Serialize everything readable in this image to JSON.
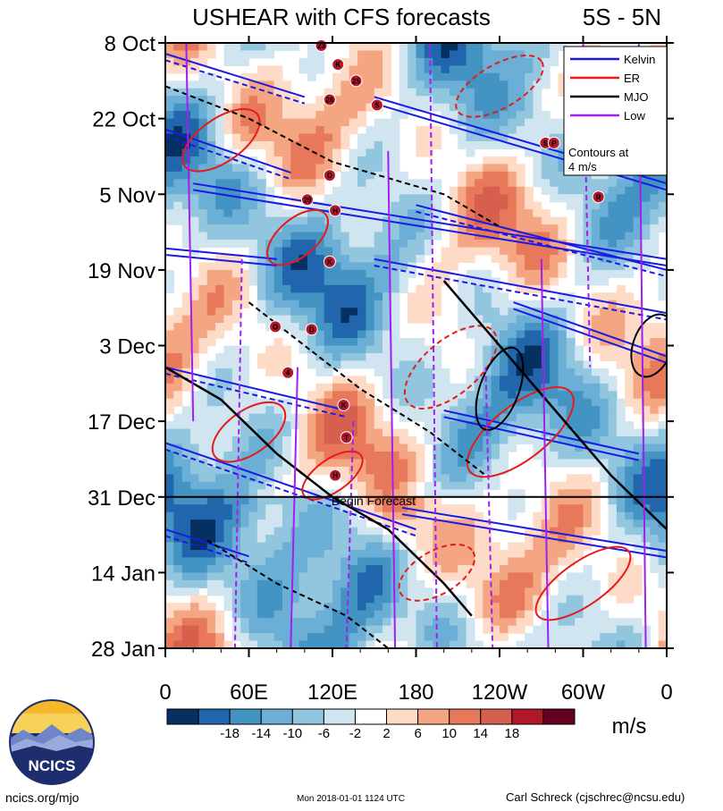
{
  "chart_data": {
    "type": "heatmap",
    "title": "USHEAR with CFS forecasts",
    "region_label": "5S - 5N",
    "x_tick_labels": [
      "0",
      "60E",
      "120E",
      "180",
      "120W",
      "60W",
      "0"
    ],
    "x_ticks_deg": [
      0,
      60,
      120,
      180,
      240,
      300,
      360
    ],
    "y_tick_labels": [
      "8 Oct",
      "22 Oct",
      "5 Nov",
      "19 Nov",
      "3 Dec",
      "17 Dec",
      "31 Dec",
      "14 Jan",
      "28 Jan"
    ],
    "y_ticks_day": [
      0,
      14,
      28,
      42,
      56,
      70,
      84,
      98,
      112
    ],
    "x_range_deg": [
      0,
      360
    ],
    "y_range_days": [
      0,
      112
    ],
    "forecast_start_day": 84,
    "forecast_label": "Begin Forecast",
    "colorbar_labels": [
      "-18",
      "-14",
      "-10",
      "-6",
      "-2",
      "2",
      "6",
      "10",
      "14",
      "18"
    ],
    "colorbar_colors": [
      "#053061",
      "#2166ac",
      "#4393c3",
      "#6baed6",
      "#92c5de",
      "#d1e5f0",
      "#ffffff",
      "#fddbc7",
      "#f4a582",
      "#e7785a",
      "#d6604d",
      "#b2182b",
      "#67001f"
    ],
    "units": "m/s",
    "legend": [
      {
        "name": "Kelvin",
        "color": "#1a1ae6"
      },
      {
        "name": "ER",
        "color": "#e61a1a"
      },
      {
        "name": "MJO",
        "color": "#000000"
      },
      {
        "name": "Low",
        "color": "#a020f0"
      }
    ],
    "contour_note_1": "Contours at",
    "contour_note_2": "4 m/s",
    "storms": [
      {
        "label": "23",
        "lon": 112,
        "day": 0.5
      },
      {
        "label": "K",
        "lon": 124,
        "day": 4
      },
      {
        "label": "25",
        "lon": 137,
        "day": 7
      },
      {
        "label": "26",
        "lon": 118,
        "day": 10.5
      },
      {
        "label": "S",
        "lon": 152,
        "day": 11.5
      },
      {
        "label": "S",
        "lon": 273,
        "day": 18.5
      },
      {
        "label": "P",
        "lon": 279,
        "day": 18.5
      },
      {
        "label": "D",
        "lon": 118,
        "day": 24.5
      },
      {
        "label": "29",
        "lon": 102,
        "day": 29
      },
      {
        "label": "H",
        "lon": 122,
        "day": 31
      },
      {
        "label": "R",
        "lon": 311,
        "day": 28.5
      },
      {
        "label": "K",
        "lon": 118,
        "day": 40.5
      },
      {
        "label": "O",
        "lon": 79,
        "day": 52.5
      },
      {
        "label": "D",
        "lon": 105,
        "day": 53
      },
      {
        "label": "4",
        "lon": 88,
        "day": 61
      },
      {
        "label": "K",
        "lon": 128,
        "day": 67
      },
      {
        "label": "T",
        "lon": 130,
        "day": 73
      },
      {
        "label": "H",
        "lon": 122,
        "day": 80
      }
    ]
  },
  "footer": {
    "logo_text": "NCICS",
    "url": "ncics.org/mjo",
    "timestamp": "Mon 2018-01-01 1124 UTC",
    "author": "Carl Schreck (cjschrec@ncsu.edu)"
  }
}
